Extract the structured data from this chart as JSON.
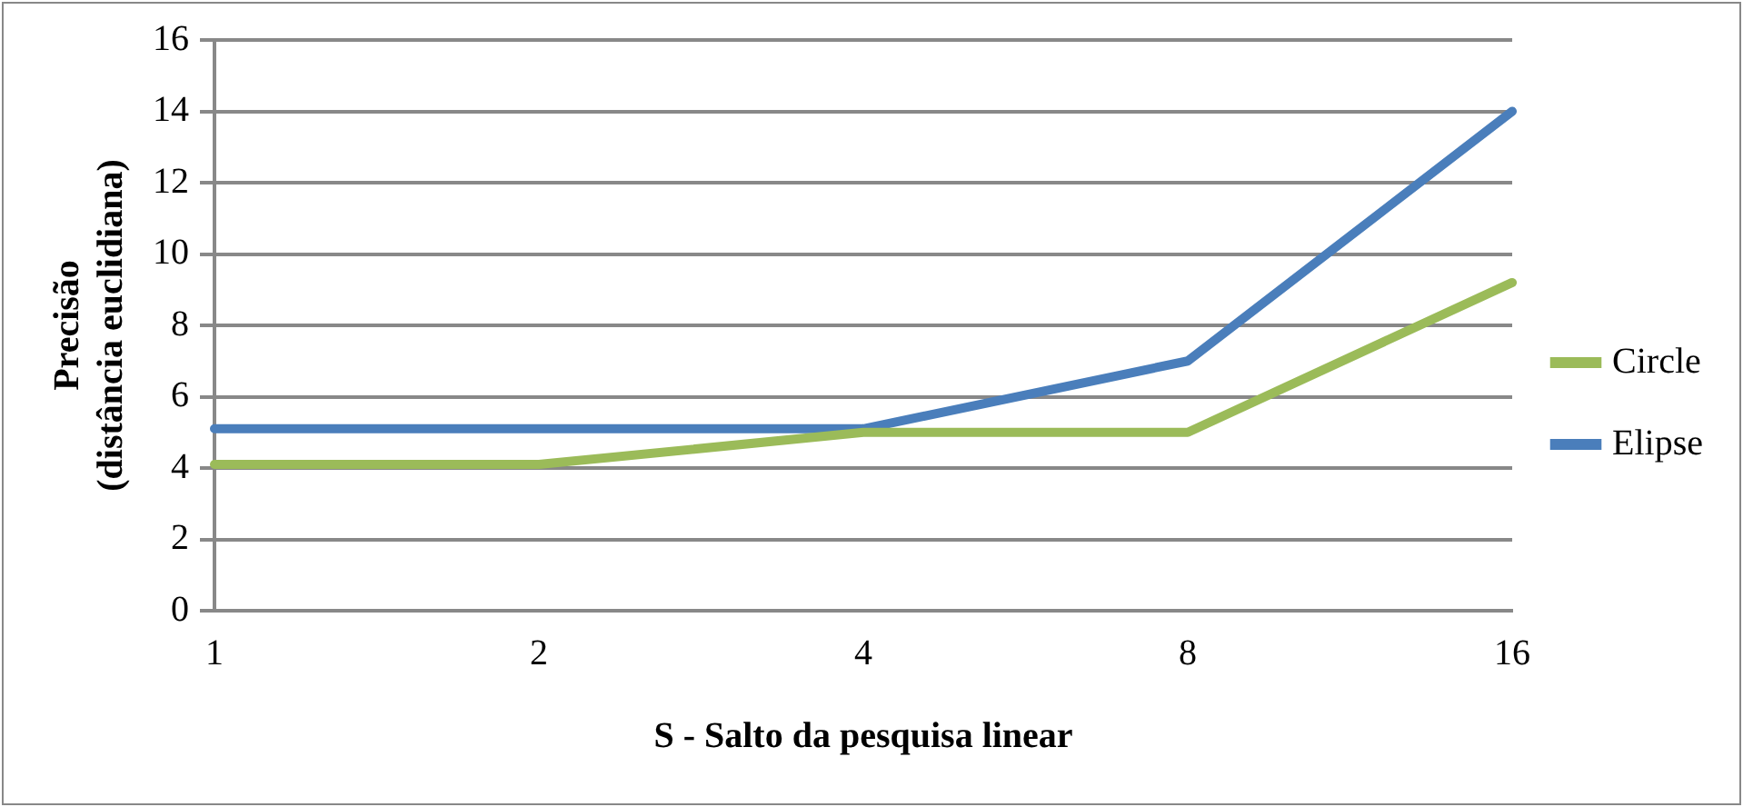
{
  "chart_data": {
    "type": "line",
    "xlabel": "S - Salto da pesquisa linear",
    "ylabel": "Precisão\n(distância euclidiana)",
    "categories": [
      "1",
      "2",
      "4",
      "8",
      "16"
    ],
    "series": [
      {
        "name": "Circle",
        "color": "#9bbb59",
        "values": [
          4.1,
          4.1,
          5.0,
          5.0,
          9.2
        ]
      },
      {
        "name": "Elipse",
        "color": "#4a7ebb",
        "values": [
          5.1,
          5.1,
          5.1,
          7.0,
          14.0
        ]
      }
    ],
    "ylim": [
      0,
      16
    ],
    "yticks": [
      0,
      2,
      4,
      6,
      8,
      10,
      12,
      14,
      16
    ],
    "grid": "y",
    "legend": "right",
    "marker": "none",
    "line_style": "solid"
  }
}
